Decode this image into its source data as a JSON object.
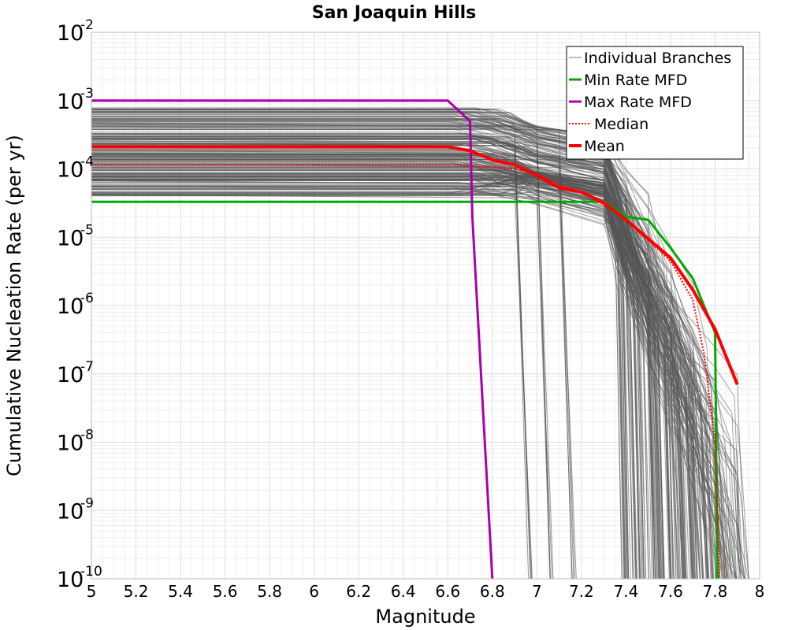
{
  "chart_data": {
    "type": "line",
    "title": "San Joaquin Hills",
    "xlabel": "Magnitude",
    "ylabel": "Cumulative Nucleation Rate (per yr)",
    "xlim": [
      5,
      8
    ],
    "ylim": [
      1e-10,
      0.01
    ],
    "y_scale": "log",
    "grid": true,
    "legend_position": "top-right",
    "x_ticks": [
      "5",
      "5.2",
      "5.4",
      "5.6",
      "5.8",
      "6",
      "6.2",
      "6.4",
      "6.6",
      "6.8",
      "7",
      "7.2",
      "7.4",
      "7.6",
      "7.8",
      "8"
    ],
    "y_ticks": [
      {
        "base": "10",
        "exp": "-10"
      },
      {
        "base": "10",
        "exp": "-9"
      },
      {
        "base": "10",
        "exp": "-8"
      },
      {
        "base": "10",
        "exp": "-7"
      },
      {
        "base": "10",
        "exp": "-6"
      },
      {
        "base": "10",
        "exp": "-5"
      },
      {
        "base": "10",
        "exp": "-4"
      },
      {
        "base": "10",
        "exp": "-3"
      },
      {
        "base": "10",
        "exp": "-2"
      }
    ],
    "series": [
      {
        "name": "Individual Branches",
        "color": "#555555",
        "style": "thin",
        "note_count_shown_as_band": true,
        "level_min": 4e-05,
        "level_max": 0.0008
      },
      {
        "name": "Min Rate MFD",
        "color": "#00aa00",
        "style": "solid",
        "x": [
          5.0,
          7.3,
          7.4,
          7.5,
          7.6,
          7.7,
          7.8,
          7.81
        ],
        "y": [
          3.3e-05,
          3.3e-05,
          2e-05,
          1.8e-05,
          7e-06,
          2.5e-06,
          4e-07,
          1e-10
        ]
      },
      {
        "name": "Max Rate MFD",
        "color": "#aa00aa",
        "style": "solid",
        "x": [
          5.0,
          6.6,
          6.7,
          6.71,
          6.8
        ],
        "y": [
          0.001,
          0.001,
          0.0005,
          2e-05,
          1e-10
        ]
      },
      {
        "name": "Median",
        "color": "#ff0000",
        "style": "dotted",
        "x": [
          5.0,
          6.6,
          6.7,
          6.9,
          7.0,
          7.1,
          7.2,
          7.3,
          7.4,
          7.5,
          7.6,
          7.7,
          7.75,
          7.8,
          7.82
        ],
        "y": [
          0.000115,
          0.000115,
          0.00011,
          0.0001,
          8.5e-05,
          6e-05,
          4.5e-05,
          3e-05,
          1.8e-05,
          9e-06,
          4.5e-06,
          1.2e-06,
          2e-07,
          1e-08,
          1e-10
        ]
      },
      {
        "name": "Mean",
        "color": "#ff0000",
        "style": "thick",
        "x": [
          5.0,
          6.6,
          6.7,
          6.8,
          6.9,
          7.0,
          7.1,
          7.2,
          7.3,
          7.4,
          7.5,
          7.6,
          7.7,
          7.8,
          7.9
        ],
        "y": [
          0.00021,
          0.00021,
          0.000185,
          0.000135,
          0.000115,
          8e-05,
          5.3e-05,
          4.6e-05,
          3.2e-05,
          1.8e-05,
          9.5e-06,
          5e-06,
          1.7e-06,
          4.5e-07,
          7e-08
        ]
      }
    ]
  },
  "legend": {
    "items": [
      {
        "label": "Individual Branches"
      },
      {
        "label": "Min Rate MFD"
      },
      {
        "label": "Max Rate MFD"
      },
      {
        "label": "Median"
      },
      {
        "label": "Mean"
      }
    ]
  }
}
